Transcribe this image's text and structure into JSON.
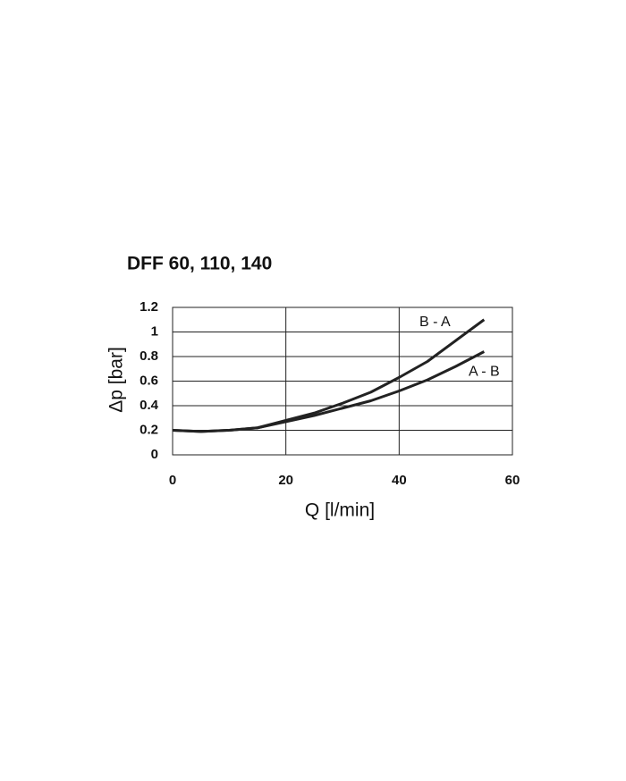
{
  "chart_data": {
    "type": "line",
    "title": "DFF 60, 110, 140",
    "x_label": "Q [l/min]",
    "y_label": "Δp [bar]",
    "x": [
      0,
      5,
      10,
      15,
      20,
      25,
      30,
      35,
      40,
      45,
      50,
      55
    ],
    "series": [
      {
        "name": "B - A",
        "color": "#222222",
        "values": [
          0.2,
          0.19,
          0.2,
          0.22,
          0.28,
          0.34,
          0.42,
          0.51,
          0.63,
          0.76,
          0.93,
          1.1
        ]
      },
      {
        "name": "A - B",
        "color": "#222222",
        "values": [
          0.2,
          0.19,
          0.2,
          0.22,
          0.27,
          0.32,
          0.38,
          0.44,
          0.52,
          0.61,
          0.72,
          0.84
        ]
      }
    ],
    "xlim": [
      0,
      60
    ],
    "xticks": [
      0,
      20,
      40,
      60
    ],
    "ylim": [
      0,
      1.2
    ],
    "yticks": [
      0,
      0.2,
      0.4,
      0.6,
      0.8,
      1,
      1.2
    ],
    "grid": true
  }
}
